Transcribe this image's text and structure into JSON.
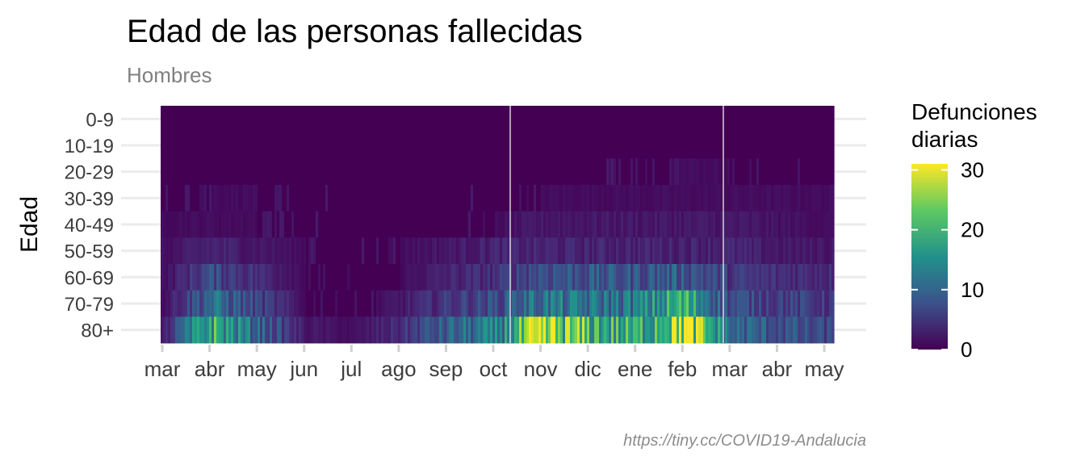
{
  "chart_data": {
    "type": "heatmap",
    "title": "Edad de las personas fallecidas",
    "subtitle": "Hombres",
    "ylabel": "Edad",
    "xlabel": "",
    "caption": "https://tiny.cc/COVID19-Andalucia",
    "y_categories": [
      "0-9",
      "10-19",
      "20-29",
      "30-39",
      "40-49",
      "50-59",
      "60-69",
      "70-79",
      "80+"
    ],
    "x_ticks": [
      "mar",
      "abr",
      "may",
      "jun",
      "jul",
      "ago",
      "sep",
      "oct",
      "nov",
      "dic",
      "ene",
      "feb",
      "mar",
      "abr",
      "may"
    ],
    "legend": {
      "title_lines": [
        "Defunciones",
        "diarias"
      ],
      "ticks": [
        0,
        10,
        20,
        30
      ],
      "range": [
        0,
        31
      ],
      "colormap": "viridis"
    },
    "series": [
      {
        "name": "0-9",
        "values": [
          [
            0,
            0
          ],
          [
            2,
            0
          ],
          [
            4,
            0
          ],
          [
            6,
            0
          ],
          [
            8,
            0
          ],
          [
            10,
            0
          ],
          [
            12,
            0
          ],
          [
            14,
            0
          ]
        ]
      },
      {
        "name": "10-19",
        "values": [
          [
            0,
            0
          ],
          [
            1,
            0
          ],
          [
            3,
            0
          ],
          [
            5,
            0
          ],
          [
            7,
            0
          ],
          [
            9,
            0
          ],
          [
            11,
            0
          ],
          [
            13,
            0
          ],
          [
            14,
            0
          ]
        ]
      },
      {
        "name": "20-29",
        "values": [
          [
            0,
            0
          ],
          [
            1,
            0
          ],
          [
            3,
            0
          ],
          [
            5,
            0
          ],
          [
            7,
            0
          ],
          [
            9,
            0
          ],
          [
            11,
            1
          ],
          [
            12,
            1
          ],
          [
            14,
            0
          ]
        ]
      },
      {
        "name": "30-39",
        "values": [
          [
            0,
            0
          ],
          [
            1,
            1
          ],
          [
            2,
            1
          ],
          [
            4,
            0
          ],
          [
            6,
            0
          ],
          [
            8,
            1
          ],
          [
            10,
            1
          ],
          [
            11,
            1
          ],
          [
            12,
            1
          ],
          [
            14,
            1
          ]
        ]
      },
      {
        "name": "40-49",
        "values": [
          [
            0,
            1
          ],
          [
            1,
            1
          ],
          [
            2,
            1
          ],
          [
            4,
            0
          ],
          [
            6,
            0
          ],
          [
            7,
            1
          ],
          [
            8,
            2
          ],
          [
            9,
            2
          ],
          [
            10,
            2
          ],
          [
            11,
            2
          ],
          [
            12,
            2
          ],
          [
            14,
            1
          ]
        ]
      },
      {
        "name": "50-59",
        "values": [
          [
            0,
            1
          ],
          [
            1,
            3
          ],
          [
            2,
            2
          ],
          [
            3,
            1
          ],
          [
            4,
            0
          ],
          [
            5,
            1
          ],
          [
            6,
            2
          ],
          [
            7,
            3
          ],
          [
            8,
            3
          ],
          [
            9,
            3
          ],
          [
            10,
            3
          ],
          [
            11,
            3
          ],
          [
            12,
            3
          ],
          [
            13,
            2
          ],
          [
            14,
            2
          ]
        ]
      },
      {
        "name": "60-69",
        "values": [
          [
            0,
            1
          ],
          [
            1,
            7
          ],
          [
            2,
            4
          ],
          [
            3,
            1
          ],
          [
            4,
            0
          ],
          [
            5,
            1
          ],
          [
            6,
            3
          ],
          [
            7,
            4
          ],
          [
            8,
            8
          ],
          [
            9,
            8
          ],
          [
            10,
            8
          ],
          [
            11,
            9
          ],
          [
            12,
            5
          ],
          [
            13,
            4
          ],
          [
            14,
            4
          ]
        ]
      },
      {
        "name": "70-79",
        "values": [
          [
            0,
            1
          ],
          [
            1,
            11
          ],
          [
            2,
            6
          ],
          [
            3,
            1
          ],
          [
            4,
            0
          ],
          [
            5,
            2
          ],
          [
            6,
            5
          ],
          [
            7,
            7
          ],
          [
            8,
            12
          ],
          [
            9,
            11
          ],
          [
            10,
            12
          ],
          [
            11,
            19
          ],
          [
            12,
            7
          ],
          [
            13,
            6
          ],
          [
            14,
            5
          ]
        ]
      },
      {
        "name": "80+",
        "values": [
          [
            0,
            2
          ],
          [
            1,
            19
          ],
          [
            2,
            10
          ],
          [
            3,
            2
          ],
          [
            4,
            1
          ],
          [
            5,
            4
          ],
          [
            6,
            9
          ],
          [
            7,
            12
          ],
          [
            8,
            25
          ],
          [
            9,
            20
          ],
          [
            10,
            17
          ],
          [
            11,
            29
          ],
          [
            12,
            10
          ],
          [
            13,
            8
          ],
          [
            14,
            6
          ]
        ]
      }
    ]
  }
}
